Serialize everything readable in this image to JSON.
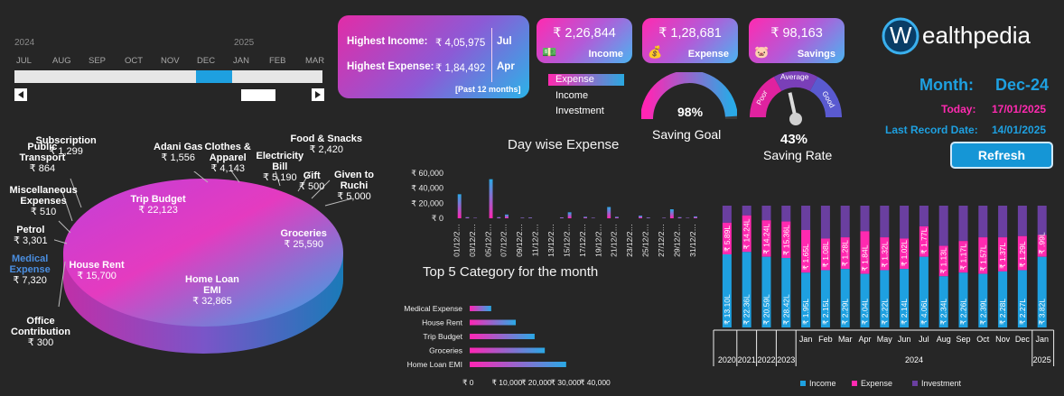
{
  "timeline": {
    "year1": "2024",
    "year2": "2025",
    "months": [
      "JUL",
      "AUG",
      "SEP",
      "OCT",
      "NOV",
      "DEC",
      "JAN",
      "FEB",
      "MAR"
    ],
    "selected": "DEC",
    "scroll_left_icon": "triangle-left-icon",
    "scroll_right_icon": "triangle-right-icon"
  },
  "summary": {
    "highest_income_label": "Highest Income:",
    "highest_income_value": "₹ 4,05,975",
    "highest_income_month": "Jul",
    "highest_expense_label": "Highest Expense:",
    "highest_expense_value": "₹ 1,84,492",
    "highest_expense_month": "Apr",
    "period_note": "[Past 12 months]"
  },
  "kpis": [
    {
      "value": "₹ 2,26,844",
      "label": "Income",
      "icon": "money-hand-icon"
    },
    {
      "value": "₹ 1,28,681",
      "label": "Expense",
      "icon": "money-bag-icon"
    },
    {
      "value": "₹ 98,163",
      "label": "Savings",
      "icon": "piggy-bank-icon"
    }
  ],
  "pie_legend": {
    "items": [
      "Expense",
      "Income",
      "Investment"
    ],
    "selected": "Expense"
  },
  "saving_goal": {
    "label": "Saving Goal",
    "value_text": "98%",
    "value": 0.98
  },
  "saving_rate": {
    "label": "Saving Rate",
    "value_text": "43%",
    "value": 0.43,
    "zones": [
      "Poor",
      "Average",
      "Good"
    ]
  },
  "brand": {
    "name": "ealthpedia",
    "initial": "W"
  },
  "info": {
    "month_label": "Month:",
    "month_value": "Dec-24",
    "today_label": "Today:",
    "today_value": "17/01/2025",
    "last_record_label": "Last Record Date:",
    "last_record_value": "14/01/2025",
    "refresh_label": "Refresh"
  },
  "colors": {
    "pink": "#ff2ab0",
    "blue": "#2aa9e0",
    "purple": "#6a3fa0",
    "accent": "#1ea0e0"
  },
  "chart_data": [
    {
      "type": "pie",
      "title": "",
      "slices": [
        {
          "label": "Groceries",
          "value": 25590,
          "value_text": "₹ 25,590"
        },
        {
          "label": "Home Loan EMI",
          "value": 32865,
          "value_text": "₹ 32,865"
        },
        {
          "label": "House Rent",
          "value": 15700,
          "value_text": "₹ 15,700"
        },
        {
          "label": "Medical Expense",
          "value": 7320,
          "value_text": "₹ 7,320"
        },
        {
          "label": "Office Contribution",
          "value": 300,
          "value_text": "₹ 300"
        },
        {
          "label": "Petrol",
          "value": 3301,
          "value_text": "₹ 3,301"
        },
        {
          "label": "Miscellaneous Expenses",
          "value": 510,
          "value_text": "₹ 510"
        },
        {
          "label": "Public Transport",
          "value": 864,
          "value_text": "₹ 864"
        },
        {
          "label": "Subscription",
          "value": 1299,
          "value_text": "₹ 1,299"
        },
        {
          "label": "Trip Budget",
          "value": 22123,
          "value_text": "₹ 22,123"
        },
        {
          "label": "Adani Gas",
          "value": 1556,
          "value_text": "₹ 1,556"
        },
        {
          "label": "Clothes & Apparel",
          "value": 4143,
          "value_text": "₹ 4,143"
        },
        {
          "label": "Electricity Bill",
          "value": 5190,
          "value_text": "₹ 5,190"
        },
        {
          "label": "Food & Snacks",
          "value": 2420,
          "value_text": "₹ 2,420"
        },
        {
          "label": "Gift",
          "value": 500,
          "value_text": "₹ 500"
        },
        {
          "label": "Given to Ruchi",
          "value": 5000,
          "value_text": "₹ 5,000"
        }
      ]
    },
    {
      "type": "bar",
      "title": "Day wise Expense",
      "yticks": [
        "₹ 60,000",
        "₹ 40,000",
        "₹ 20,000",
        "₹ 0"
      ],
      "ylim": [
        0,
        60000
      ],
      "categories": [
        "01/12/2…",
        "02/12/2…",
        "03/12/2…",
        "04/12/2…",
        "05/12/2…",
        "06/12/2…",
        "07/12/2…",
        "08/12/2…",
        "09/12/2…",
        "10/12/2…",
        "11/12/2…",
        "12/12/2…",
        "13/12/2…",
        "14/12/2…",
        "15/12/2…",
        "16/12/2…",
        "17/12/2…",
        "18/12/2…",
        "19/12/2…",
        "20/12/2…",
        "21/12/2…",
        "22/12/2…",
        "23/12/2…",
        "24/12/2…",
        "25/12/2…",
        "26/12/2…",
        "27/12/2…",
        "28/12/2…",
        "29/12/2…",
        "30/12/2…",
        "31/12/2…"
      ],
      "values": [
        32000,
        1500,
        600,
        0,
        52000,
        1500,
        5000,
        0,
        800,
        1000,
        0,
        0,
        0,
        1200,
        8000,
        0,
        2000,
        700,
        0,
        15000,
        2000,
        0,
        0,
        3500,
        1000,
        0,
        700,
        12000,
        1500,
        600,
        2500
      ]
    },
    {
      "type": "bar",
      "orientation": "horizontal",
      "title": "Top 5 Category for the month",
      "categories": [
        "Medical Expense",
        "House Rent",
        "Trip Budget",
        "Groceries",
        "Home Loan EMI"
      ],
      "values": [
        7320,
        15700,
        22123,
        25590,
        32865
      ],
      "xticks": [
        "₹ 0",
        "₹ 10,000",
        "₹ 20,000",
        "₹ 30,000",
        "₹ 40,000"
      ],
      "xlim": [
        0,
        40000
      ]
    },
    {
      "type": "bar",
      "stacked": true,
      "title": "",
      "legend": [
        "Income",
        "Expense",
        "Investment"
      ],
      "categories": [
        "2020",
        "2021",
        "2022",
        "2023",
        "Jan",
        "Feb",
        "Mar",
        "Apr",
        "May",
        "Jun",
        "Jul",
        "Aug",
        "Sep",
        "Oct",
        "Nov",
        "Dec",
        "Jan"
      ],
      "group_labels": [
        "2020",
        "2021",
        "2022",
        "2023",
        "2024",
        "2025"
      ],
      "income_labels": [
        "₹ 13.10L",
        "₹ 22.36L",
        "₹ 20.59L",
        "₹ 28.42L",
        "₹ 1.95L",
        "₹ 2.15L",
        "₹ 2.29L",
        "₹ 2.04L",
        "₹ 2.22L",
        "₹ 2.14L",
        "₹ 4.06L",
        "₹ 2.34L",
        "₹ 2.26L",
        "₹ 2.39L",
        "₹ 2.28L",
        "₹ 2.27L",
        "₹ 3.82L"
      ],
      "expense_labels": [
        "₹ 5.89L",
        "₹ 14.24L",
        "₹ 14.24L",
        "₹ 15.36L",
        "₹ 1.65L",
        "₹ 1.08L",
        "₹ 1.28L",
        "₹ 1.84L",
        "₹ 1.32L",
        "₹ 1.02L",
        "₹ 1.77L",
        "₹ 1.13L",
        "₹ 1.17L",
        "₹ 1.57L",
        "₹ 1.37L",
        "₹ 1.29L",
        "₹ .99L"
      ],
      "series": [
        {
          "name": "Income",
          "values": [
            0.6,
            0.62,
            0.58,
            0.57,
            0.45,
            0.47,
            0.48,
            0.44,
            0.47,
            0.48,
            0.58,
            0.42,
            0.45,
            0.44,
            0.46,
            0.47,
            0.58
          ]
        },
        {
          "name": "Expense",
          "values": [
            0.26,
            0.3,
            0.3,
            0.3,
            0.35,
            0.26,
            0.26,
            0.35,
            0.27,
            0.25,
            0.25,
            0.25,
            0.26,
            0.3,
            0.28,
            0.28,
            0.18
          ]
        },
        {
          "name": "Investment",
          "values": [
            0.14,
            0.08,
            0.12,
            0.13,
            0.2,
            0.27,
            0.26,
            0.21,
            0.26,
            0.27,
            0.17,
            0.33,
            0.29,
            0.26,
            0.26,
            0.25,
            0.24
          ]
        }
      ]
    }
  ]
}
